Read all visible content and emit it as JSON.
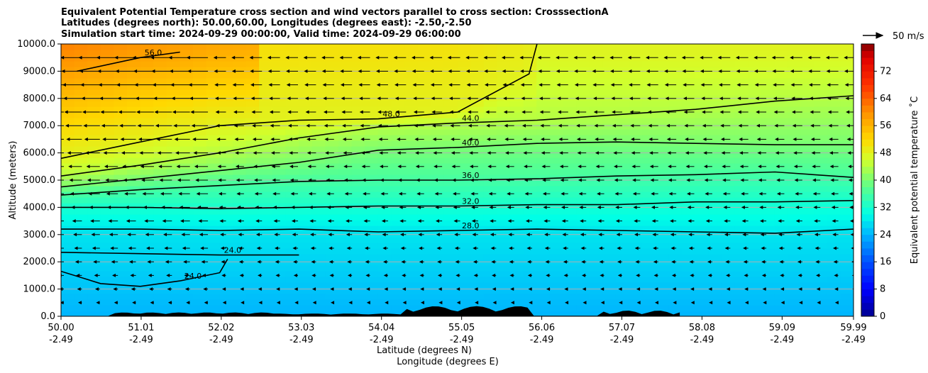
{
  "chart_data": {
    "type": "heatmap",
    "title_lines": [
      "Equivalent Potential Temperature cross section and wind vectors parallel to cross section: CrosssectionA",
      "Latitudes (degrees north): 50.00,60.00, Longitudes (degrees east): -2.50,-2.50",
      "Simulation start time: 2024-09-29 00:00:00, Valid time: 2024-09-29 06:00:00"
    ],
    "xlabel": "Latitude (degrees N)",
    "xlabel2": "Longitude (degrees E)",
    "ylabel": "Altitude (meters)",
    "xlim": [
      50.0,
      59.99
    ],
    "ylim": [
      0,
      10000
    ],
    "x_ticks": [
      {
        "lat": "50.00",
        "lon": "-2.49",
        "value": 50.0
      },
      {
        "lat": "51.01",
        "lon": "-2.49",
        "value": 51.01
      },
      {
        "lat": "52.02",
        "lon": "-2.49",
        "value": 52.02
      },
      {
        "lat": "53.03",
        "lon": "-2.49",
        "value": 53.03
      },
      {
        "lat": "54.04",
        "lon": "-2.49",
        "value": 54.04
      },
      {
        "lat": "55.05",
        "lon": "-2.49",
        "value": 55.05
      },
      {
        "lat": "56.06",
        "lon": "-2.49",
        "value": 56.06
      },
      {
        "lat": "57.07",
        "lon": "-2.49",
        "value": 57.07
      },
      {
        "lat": "58.08",
        "lon": "-2.49",
        "value": 58.08
      },
      {
        "lat": "59.09",
        "lon": "-2.49",
        "value": 59.09
      },
      {
        "lat": "59.99",
        "lon": "-2.49",
        "value": 59.99
      }
    ],
    "y_ticks": [
      {
        "label": "0.0",
        "value": 0
      },
      {
        "label": "1000.0",
        "value": 1000
      },
      {
        "label": "2000.0",
        "value": 2000
      },
      {
        "label": "3000.0",
        "value": 3000
      },
      {
        "label": "4000.0",
        "value": 4000
      },
      {
        "label": "5000.0",
        "value": 5000
      },
      {
        "label": "6000.0",
        "value": 6000
      },
      {
        "label": "7000.0",
        "value": 7000
      },
      {
        "label": "8000.0",
        "value": 8000
      },
      {
        "label": "9000.0",
        "value": 9000
      },
      {
        "label": "10000.0",
        "value": 10000
      }
    ],
    "grid": "horizontal",
    "colorbar": {
      "label": "Equivalent potential temperature ˚C",
      "range": [
        0,
        80
      ],
      "ticks": [
        "0",
        "8",
        "16",
        "24",
        "32",
        "40",
        "48",
        "56",
        "64",
        "72"
      ],
      "tick_values": [
        0,
        8,
        16,
        24,
        32,
        40,
        48,
        56,
        64,
        72
      ],
      "stops": [
        {
          "v": 0,
          "c": "#00008f"
        },
        {
          "v": 8,
          "c": "#0000ff"
        },
        {
          "v": 16,
          "c": "#0050ff"
        },
        {
          "v": 24,
          "c": "#00b4ff"
        },
        {
          "v": 30,
          "c": "#00ffe6"
        },
        {
          "v": 38,
          "c": "#5cff8c"
        },
        {
          "v": 46,
          "c": "#d2ff2c"
        },
        {
          "v": 52,
          "c": "#ffd800"
        },
        {
          "v": 60,
          "c": "#ff9000"
        },
        {
          "v": 68,
          "c": "#ff3200"
        },
        {
          "v": 76,
          "c": "#df0000"
        },
        {
          "v": 80,
          "c": "#800000"
        }
      ]
    },
    "quiver_key": {
      "label": "50 m/s",
      "speed": 50
    },
    "contour_levels": [
      {
        "level": 24,
        "label": "24.0",
        "points": [
          [
            50.0,
            2350
          ],
          [
            51.0,
            2300
          ],
          [
            52.0,
            2250
          ],
          [
            53.0,
            2250
          ]
        ]
      },
      {
        "level": 24,
        "label": "24.0",
        "points": [
          [
            50.0,
            1650
          ],
          [
            50.5,
            1200
          ],
          [
            51.0,
            1100
          ],
          [
            51.5,
            1300
          ],
          [
            52.0,
            1600
          ],
          [
            52.1,
            2100
          ]
        ]
      },
      {
        "level": 28,
        "label": "28.0",
        "points": [
          [
            50.0,
            3200
          ],
          [
            51.0,
            3200
          ],
          [
            52.0,
            3150
          ],
          [
            53.0,
            3200
          ],
          [
            54.0,
            3100
          ],
          [
            55.0,
            3150
          ],
          [
            56.0,
            3200
          ],
          [
            57.0,
            3150
          ],
          [
            58.0,
            3100
          ],
          [
            59.0,
            3050
          ],
          [
            59.99,
            3200
          ]
        ]
      },
      {
        "level": 32,
        "label": "32.0",
        "points": [
          [
            50.0,
            4000
          ],
          [
            51.0,
            4000
          ],
          [
            52.0,
            3950
          ],
          [
            53.0,
            4000
          ],
          [
            54.0,
            4050
          ],
          [
            55.0,
            4050
          ],
          [
            56.0,
            4100
          ],
          [
            57.0,
            4100
          ],
          [
            58.0,
            4200
          ],
          [
            59.0,
            4200
          ],
          [
            59.99,
            4250
          ]
        ]
      },
      {
        "level": 36,
        "label": "36.0",
        "points": [
          [
            50.0,
            4450
          ],
          [
            51.0,
            4650
          ],
          [
            52.0,
            4800
          ],
          [
            53.0,
            4950
          ],
          [
            54.0,
            5000
          ],
          [
            55.0,
            5000
          ],
          [
            56.0,
            5050
          ],
          [
            57.0,
            5150
          ],
          [
            58.0,
            5200
          ],
          [
            59.0,
            5300
          ],
          [
            59.99,
            5100
          ]
        ]
      },
      {
        "level": 40,
        "label": "40.0",
        "points": [
          [
            50.0,
            4750
          ],
          [
            51.0,
            5050
          ],
          [
            52.0,
            5350
          ],
          [
            53.0,
            5650
          ],
          [
            54.0,
            6100
          ],
          [
            55.0,
            6200
          ],
          [
            56.0,
            6350
          ],
          [
            57.0,
            6400
          ],
          [
            58.0,
            6350
          ],
          [
            59.0,
            6300
          ],
          [
            59.99,
            6300
          ]
        ]
      },
      {
        "level": 44,
        "label": "44.0",
        "points": [
          [
            50.0,
            5150
          ],
          [
            51.0,
            5550
          ],
          [
            52.0,
            6000
          ],
          [
            53.0,
            6550
          ],
          [
            54.0,
            6950
          ],
          [
            55.0,
            7100
          ],
          [
            56.0,
            7200
          ],
          [
            57.0,
            7400
          ],
          [
            58.0,
            7600
          ],
          [
            59.0,
            7900
          ],
          [
            59.99,
            8100
          ]
        ]
      },
      {
        "level": 48,
        "label": "48.0",
        "points": [
          [
            50.0,
            5800
          ],
          [
            51.0,
            6400
          ],
          [
            52.0,
            7000
          ],
          [
            53.0,
            7200
          ],
          [
            54.0,
            7250
          ],
          [
            55.0,
            7500
          ],
          [
            55.9,
            8900
          ],
          [
            56.0,
            10000
          ]
        ]
      },
      {
        "level": 56,
        "label": "56.0",
        "points": [
          [
            50.2,
            9000
          ],
          [
            51.0,
            9500
          ],
          [
            51.5,
            9700
          ]
        ]
      }
    ],
    "wind_vector_note": "u-component mostly westward (negative), stronger aloft"
  }
}
